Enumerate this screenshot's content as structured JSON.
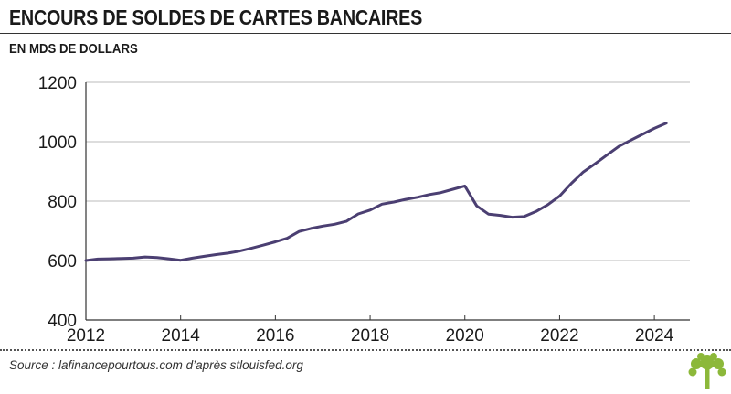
{
  "header": {
    "title": "ENCOURS DE SOLDES DE CARTES BANCAIRES",
    "subtitle": "EN MDS DE DOLLARS"
  },
  "footer": {
    "source": "Source : lafinancepourtous.com d’après stlouisfed.org",
    "logo_icon": "tree-icon"
  },
  "colors": {
    "line": "#4b3f72",
    "grid": "#bbbbbb",
    "axis": "#333333",
    "logo": "#8cb83a"
  },
  "chart_data": {
    "type": "line",
    "title": "ENCOURS DE SOLDES DE CARTES BANCAIRES",
    "subtitle": "EN MDS DE DOLLARS",
    "xlim": [
      2012,
      2024.75
    ],
    "ylim": [
      400,
      1200
    ],
    "x_ticks": [
      2012,
      2014,
      2016,
      2018,
      2020,
      2022,
      2024
    ],
    "y_ticks": [
      400,
      600,
      800,
      1000,
      1200
    ],
    "grid": "horizontal",
    "series": [
      {
        "x": [
          2012.0,
          2012.25,
          2012.5,
          2012.75,
          2013.0,
          2013.25,
          2013.5,
          2013.75,
          2014.0,
          2014.25,
          2014.5,
          2014.75,
          2015.0,
          2015.25,
          2015.5,
          2015.75,
          2016.0,
          2016.25,
          2016.5,
          2016.75,
          2017.0,
          2017.25,
          2017.5,
          2017.75,
          2018.0,
          2018.25,
          2018.5,
          2018.75,
          2019.0,
          2019.25,
          2019.5,
          2019.75,
          2020.0,
          2020.25,
          2020.5,
          2020.75,
          2021.0,
          2021.25,
          2021.5,
          2021.75,
          2022.0,
          2022.25,
          2022.5,
          2022.75,
          2023.0,
          2023.25,
          2023.5,
          2023.75,
          2024.0,
          2024.25
        ],
        "values": [
          600,
          605,
          606,
          607,
          608,
          612,
          610,
          606,
          601,
          608,
          614,
          620,
          625,
          632,
          642,
          652,
          663,
          675,
          698,
          708,
          716,
          722,
          732,
          757,
          770,
          790,
          797,
          806,
          813,
          822,
          829,
          840,
          851,
          784,
          756,
          752,
          746,
          748,
          765,
          788,
          817,
          860,
          898,
          926,
          955,
          984,
          1005,
          1025,
          1045,
          1062
        ]
      }
    ]
  }
}
